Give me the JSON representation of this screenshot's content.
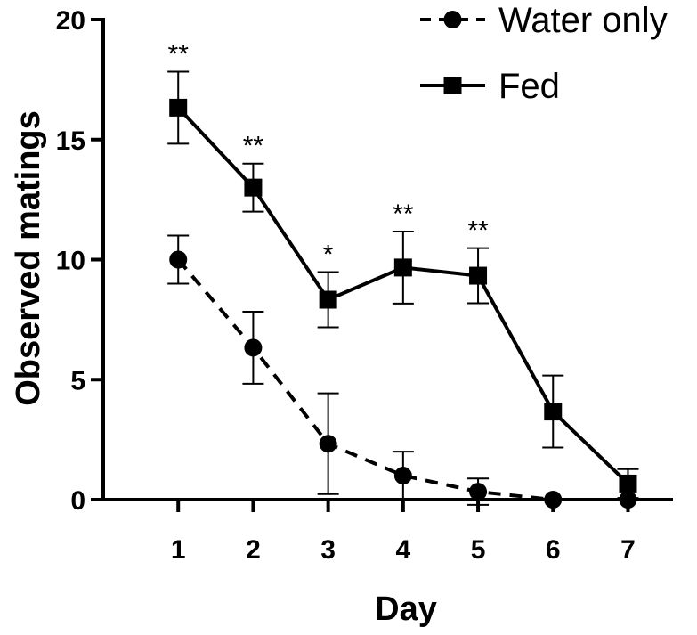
{
  "chart_data": {
    "type": "line",
    "xlabel": "Day",
    "ylabel": "Observed matings",
    "x": [
      1,
      2,
      3,
      4,
      5,
      6,
      7
    ],
    "xlim": [
      0,
      7.6
    ],
    "ylim": [
      0,
      20
    ],
    "yticks": [
      0,
      5,
      10,
      15,
      20
    ],
    "grid": false,
    "legend_position": "top-right",
    "series": [
      {
        "name": "Water only",
        "marker": "circle",
        "line_style": "dashed",
        "color": "#000000",
        "values": [
          10,
          6.33,
          2.33,
          1,
          0.33,
          0,
          0
        ],
        "error": [
          1,
          1.5,
          2.1,
          1,
          0.55,
          0,
          0
        ]
      },
      {
        "name": "Fed",
        "marker": "square",
        "line_style": "solid",
        "color": "#000000",
        "values": [
          16.33,
          13,
          8.33,
          9.67,
          9.33,
          3.67,
          0.67
        ],
        "error": [
          1.5,
          1,
          1.15,
          1.5,
          1.15,
          1.5,
          0.6
        ]
      }
    ],
    "annotations": [
      {
        "x": 1,
        "text": "**"
      },
      {
        "x": 2,
        "text": "**"
      },
      {
        "x": 3,
        "text": "*"
      },
      {
        "x": 4,
        "text": "**"
      },
      {
        "x": 5,
        "text": "**"
      }
    ]
  }
}
